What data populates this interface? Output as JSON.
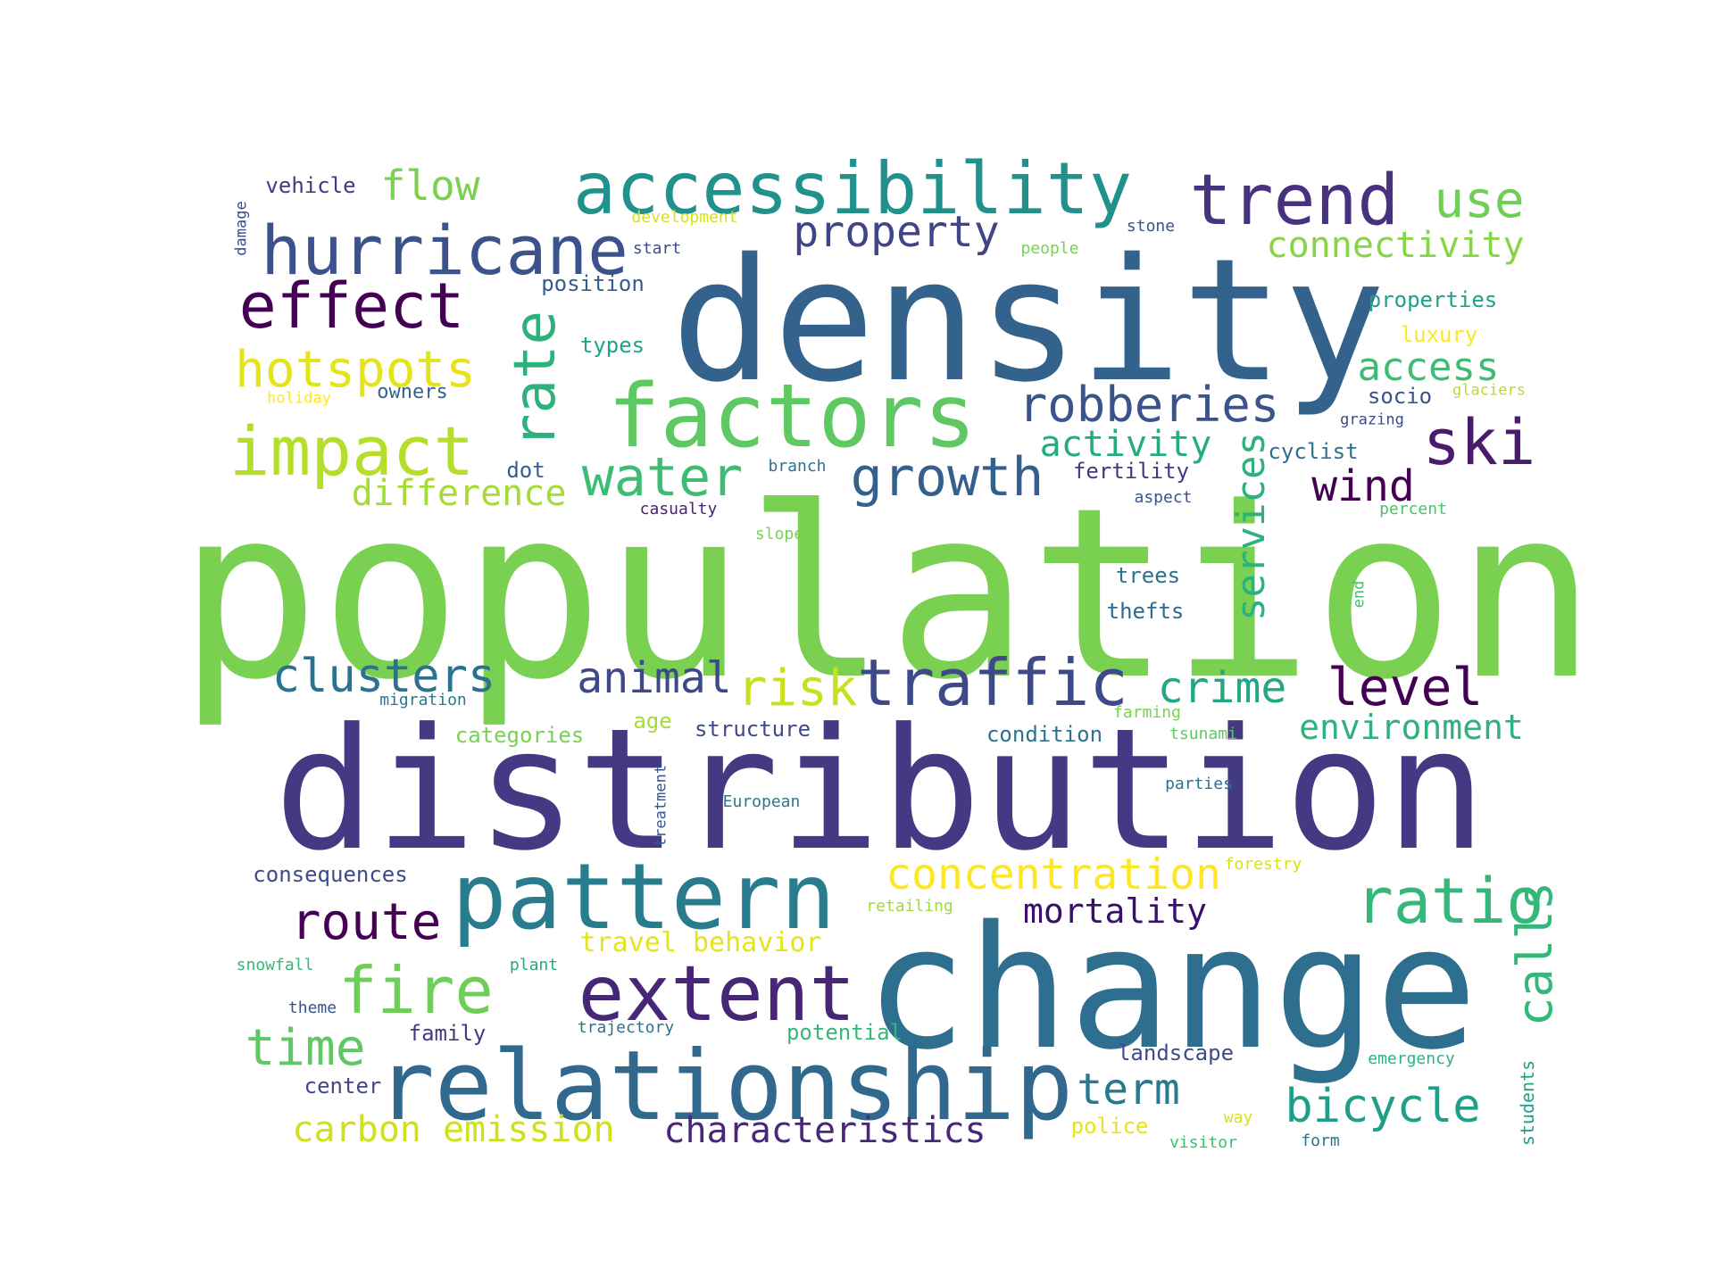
{
  "words": [
    {
      "text": "population",
      "color": "#7ad151"
    },
    {
      "text": "distribution",
      "color": "#443983"
    },
    {
      "text": "density",
      "color": "#33638d"
    },
    {
      "text": "change",
      "color": "#2e6e8e"
    },
    {
      "text": "relationship",
      "color": "#31688e"
    },
    {
      "text": "pattern",
      "color": "#287c8e"
    },
    {
      "text": "factors",
      "color": "#5ec962"
    },
    {
      "text": "accessibility",
      "color": "#21918c"
    },
    {
      "text": "extent",
      "color": "#482677"
    },
    {
      "text": "trend",
      "color": "#46327e"
    },
    {
      "text": "hurricane",
      "color": "#3b528b"
    },
    {
      "text": "impact",
      "color": "#b5de2b"
    },
    {
      "text": "effect",
      "color": "#440154"
    },
    {
      "text": "traffic",
      "color": "#3e4989"
    },
    {
      "text": "ratio",
      "color": "#35b779"
    },
    {
      "text": "fire",
      "color": "#6ece58"
    },
    {
      "text": "ski",
      "color": "#481b6d"
    },
    {
      "text": "rate",
      "color": "#2db27d"
    },
    {
      "text": "water",
      "color": "#3fbc73"
    },
    {
      "text": "growth",
      "color": "#355f8d"
    },
    {
      "text": "hotspots",
      "color": "#e5e419"
    },
    {
      "text": "route",
      "color": "#440154"
    },
    {
      "text": "time",
      "color": "#5ec962"
    },
    {
      "text": "clusters",
      "color": "#2c728e"
    },
    {
      "text": "level",
      "color": "#440154"
    },
    {
      "text": "concentration",
      "color": "#fde725"
    },
    {
      "text": "robberies",
      "color": "#3b528b"
    },
    {
      "text": "bicycle",
      "color": "#1f9e89"
    },
    {
      "text": "use",
      "color": "#6ece58"
    },
    {
      "text": "risk",
      "color": "#c8e020"
    },
    {
      "text": "animal",
      "color": "#3e4989"
    },
    {
      "text": "property",
      "color": "#414487"
    },
    {
      "text": "crime",
      "color": "#22a884"
    },
    {
      "text": "term",
      "color": "#2a788e"
    },
    {
      "text": "calls",
      "color": "#35b779"
    },
    {
      "text": "access",
      "color": "#3fbc73"
    },
    {
      "text": "wind",
      "color": "#440154"
    },
    {
      "text": "services",
      "color": "#2db27d"
    },
    {
      "text": "flow",
      "color": "#7ad151"
    },
    {
      "text": "connectivity",
      "color": "#86d549"
    },
    {
      "text": "carbon emission",
      "color": "#d0e11c"
    },
    {
      "text": "characteristics",
      "color": "#482878"
    },
    {
      "text": "environment",
      "color": "#2db27d"
    },
    {
      "text": "difference",
      "color": "#a5db36"
    },
    {
      "text": "mortality",
      "color": "#3b0f70"
    },
    {
      "text": "activity",
      "color": "#25ab82"
    },
    {
      "text": "travel behavior",
      "color": "#e5e419"
    },
    {
      "text": "consequences",
      "color": "#3e4a89"
    },
    {
      "text": "vehicle",
      "color": "#443983"
    },
    {
      "text": "position",
      "color": "#365c8d"
    },
    {
      "text": "types",
      "color": "#20a386"
    },
    {
      "text": "owners",
      "color": "#33638d"
    },
    {
      "text": "dot",
      "color": "#355f8d"
    },
    {
      "text": "properties",
      "color": "#1fa088"
    },
    {
      "text": "luxury",
      "color": "#fde725"
    },
    {
      "text": "socio",
      "color": "#3b528b"
    },
    {
      "text": "cyclist",
      "color": "#2c728e"
    },
    {
      "text": "fertility",
      "color": "#453781"
    },
    {
      "text": "trees",
      "color": "#2c728e"
    },
    {
      "text": "thefts",
      "color": "#31688e"
    },
    {
      "text": "structure",
      "color": "#3e4989"
    },
    {
      "text": "condition",
      "color": "#2c728e"
    },
    {
      "text": "categories",
      "color": "#7ad151"
    },
    {
      "text": "age",
      "color": "#a5db36"
    },
    {
      "text": "family",
      "color": "#443983"
    },
    {
      "text": "potential",
      "color": "#35b779"
    },
    {
      "text": "center",
      "color": "#404688"
    },
    {
      "text": "landscape",
      "color": "#3e4a89"
    },
    {
      "text": "police",
      "color": "#e7e419"
    },
    {
      "text": "students",
      "color": "#1f9e89"
    },
    {
      "text": "stone",
      "color": "#3b528b"
    },
    {
      "text": "start",
      "color": "#3e4989"
    },
    {
      "text": "people",
      "color": "#7ad151"
    },
    {
      "text": "development",
      "color": "#d8e219"
    },
    {
      "text": "damage",
      "color": "#3e4989"
    },
    {
      "text": "holiday",
      "color": "#fde725"
    },
    {
      "text": "glaciers",
      "color": "#b5de2b"
    },
    {
      "text": "grazing",
      "color": "#3e4989"
    },
    {
      "text": "branch",
      "color": "#2c728e"
    },
    {
      "text": "casualty",
      "color": "#482173"
    },
    {
      "text": "aspect",
      "color": "#3b528b"
    },
    {
      "text": "percent",
      "color": "#4ac16d"
    },
    {
      "text": "slope",
      "color": "#7ad151"
    },
    {
      "text": "end",
      "color": "#4ac16d"
    },
    {
      "text": "migration",
      "color": "#2a788e"
    },
    {
      "text": "farming",
      "color": "#7ad151"
    },
    {
      "text": "tsunami",
      "color": "#5ec962"
    },
    {
      "text": "treatment",
      "color": "#39558c"
    },
    {
      "text": "European",
      "color": "#2a788e"
    },
    {
      "text": "parties",
      "color": "#2c728e"
    },
    {
      "text": "forestry",
      "color": "#d8e219"
    },
    {
      "text": "retailing",
      "color": "#9fda3a"
    },
    {
      "text": "snowfall",
      "color": "#35b779"
    },
    {
      "text": "plant",
      "color": "#22a884"
    },
    {
      "text": "theme",
      "color": "#3b528b"
    },
    {
      "text": "trajectory",
      "color": "#2c728e"
    },
    {
      "text": "emergency",
      "color": "#2db27d"
    },
    {
      "text": "way",
      "color": "#d8e219"
    },
    {
      "text": "visitor",
      "color": "#3fbc73"
    },
    {
      "text": "form",
      "color": "#2c728e"
    }
  ]
}
